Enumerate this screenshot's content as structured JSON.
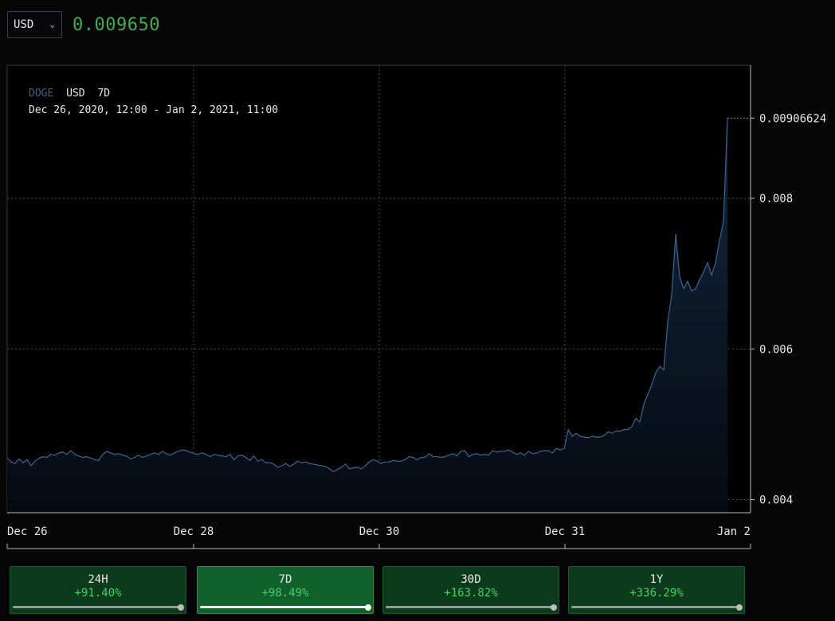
{
  "header": {
    "currency": "USD",
    "price": "0.009650"
  },
  "chart_info": {
    "symbol": "DOGE",
    "quote": "USD",
    "range": "7D",
    "date_range": "Dec 26, 2020, 12:00 - Jan 2, 2021, 11:00"
  },
  "chart_data": {
    "type": "area",
    "series": [
      {
        "values": [
          0.00455,
          0.0045,
          0.00448,
          0.00454,
          0.00449,
          0.00453,
          0.00445,
          0.00451,
          0.00455,
          0.00457,
          0.00456,
          0.0046,
          0.00459,
          0.00462,
          0.00463,
          0.0046,
          0.00465,
          0.0046,
          0.00458,
          0.00456,
          0.00457,
          0.00455,
          0.00453,
          0.00452,
          0.0046,
          0.00464,
          0.00462,
          0.0046,
          0.00461,
          0.00459,
          0.00458,
          0.00454,
          0.00456,
          0.00459,
          0.00456,
          0.00458,
          0.0046,
          0.00462,
          0.0046,
          0.00464,
          0.00461,
          0.00459,
          0.00462,
          0.00464,
          0.00466,
          0.00465,
          0.00463,
          0.00461,
          0.0046,
          0.00462,
          0.0046,
          0.00457,
          0.0046,
          0.00459,
          0.00458,
          0.00457,
          0.0046,
          0.00453,
          0.00458,
          0.00459,
          0.00456,
          0.00452,
          0.00458,
          0.00451,
          0.00453,
          0.00449,
          0.00449,
          0.00447,
          0.00443,
          0.00445,
          0.00448,
          0.00444,
          0.00447,
          0.00451,
          0.00449,
          0.0045,
          0.00448,
          0.00447,
          0.00446,
          0.00445,
          0.00444,
          0.00441,
          0.00437,
          0.0044,
          0.00443,
          0.00447,
          0.00441,
          0.00442,
          0.00443,
          0.00441,
          0.00445,
          0.0045,
          0.00453,
          0.00451,
          0.00448,
          0.0045,
          0.0045,
          0.00452,
          0.00451,
          0.00451,
          0.00453,
          0.00457,
          0.00456,
          0.00453,
          0.00456,
          0.00456,
          0.00461,
          0.00457,
          0.00457,
          0.00456,
          0.00457,
          0.00459,
          0.00461,
          0.00458,
          0.00464,
          0.00465,
          0.00457,
          0.0046,
          0.00461,
          0.00459,
          0.0046,
          0.00459,
          0.00465,
          0.00463,
          0.00464,
          0.00464,
          0.00466,
          0.00463,
          0.0046,
          0.00462,
          0.00459,
          0.00464,
          0.00461,
          0.00462,
          0.00464,
          0.00465,
          0.00465,
          0.00462,
          0.00468,
          0.00466,
          0.00468,
          0.00493,
          0.00484,
          0.00488,
          0.00484,
          0.00483,
          0.00482,
          0.00484,
          0.00483,
          0.00483,
          0.00485,
          0.0049,
          0.00488,
          0.00491,
          0.00491,
          0.00493,
          0.00493,
          0.00497,
          0.00508,
          0.00503,
          0.00527,
          0.0054,
          0.00553,
          0.00569,
          0.00577,
          0.00572,
          0.00636,
          0.00672,
          0.00752,
          0.00696,
          0.0068,
          0.0069,
          0.00677,
          0.0068,
          0.00692,
          0.00702,
          0.00715,
          0.00698,
          0.00714,
          0.00744,
          0.00769,
          0.009066
        ]
      }
    ],
    "x_ticks": [
      "Dec 26",
      "Dec 28",
      "Dec 30",
      "Dec 31",
      "Jan 2"
    ],
    "y_ticks": [
      "0.004",
      "0.006",
      "0.008"
    ],
    "last_value_label": "0.00906624",
    "ylim": [
      0.004,
      0.00906624
    ],
    "grid": true,
    "colors": {
      "line": "#3a6590",
      "fill_top": "#12283e",
      "fill_bottom": "#050a12",
      "grid": "#4a4a4a",
      "axis": "#bcbcbc"
    }
  },
  "ranges": [
    {
      "label": "24H",
      "change": "+91.40%",
      "active": false
    },
    {
      "label": "7D",
      "change": "+98.49%",
      "active": true
    },
    {
      "label": "30D",
      "change": "+163.82%",
      "active": false
    },
    {
      "label": "1Y",
      "change": "+336.29%",
      "active": false
    }
  ]
}
